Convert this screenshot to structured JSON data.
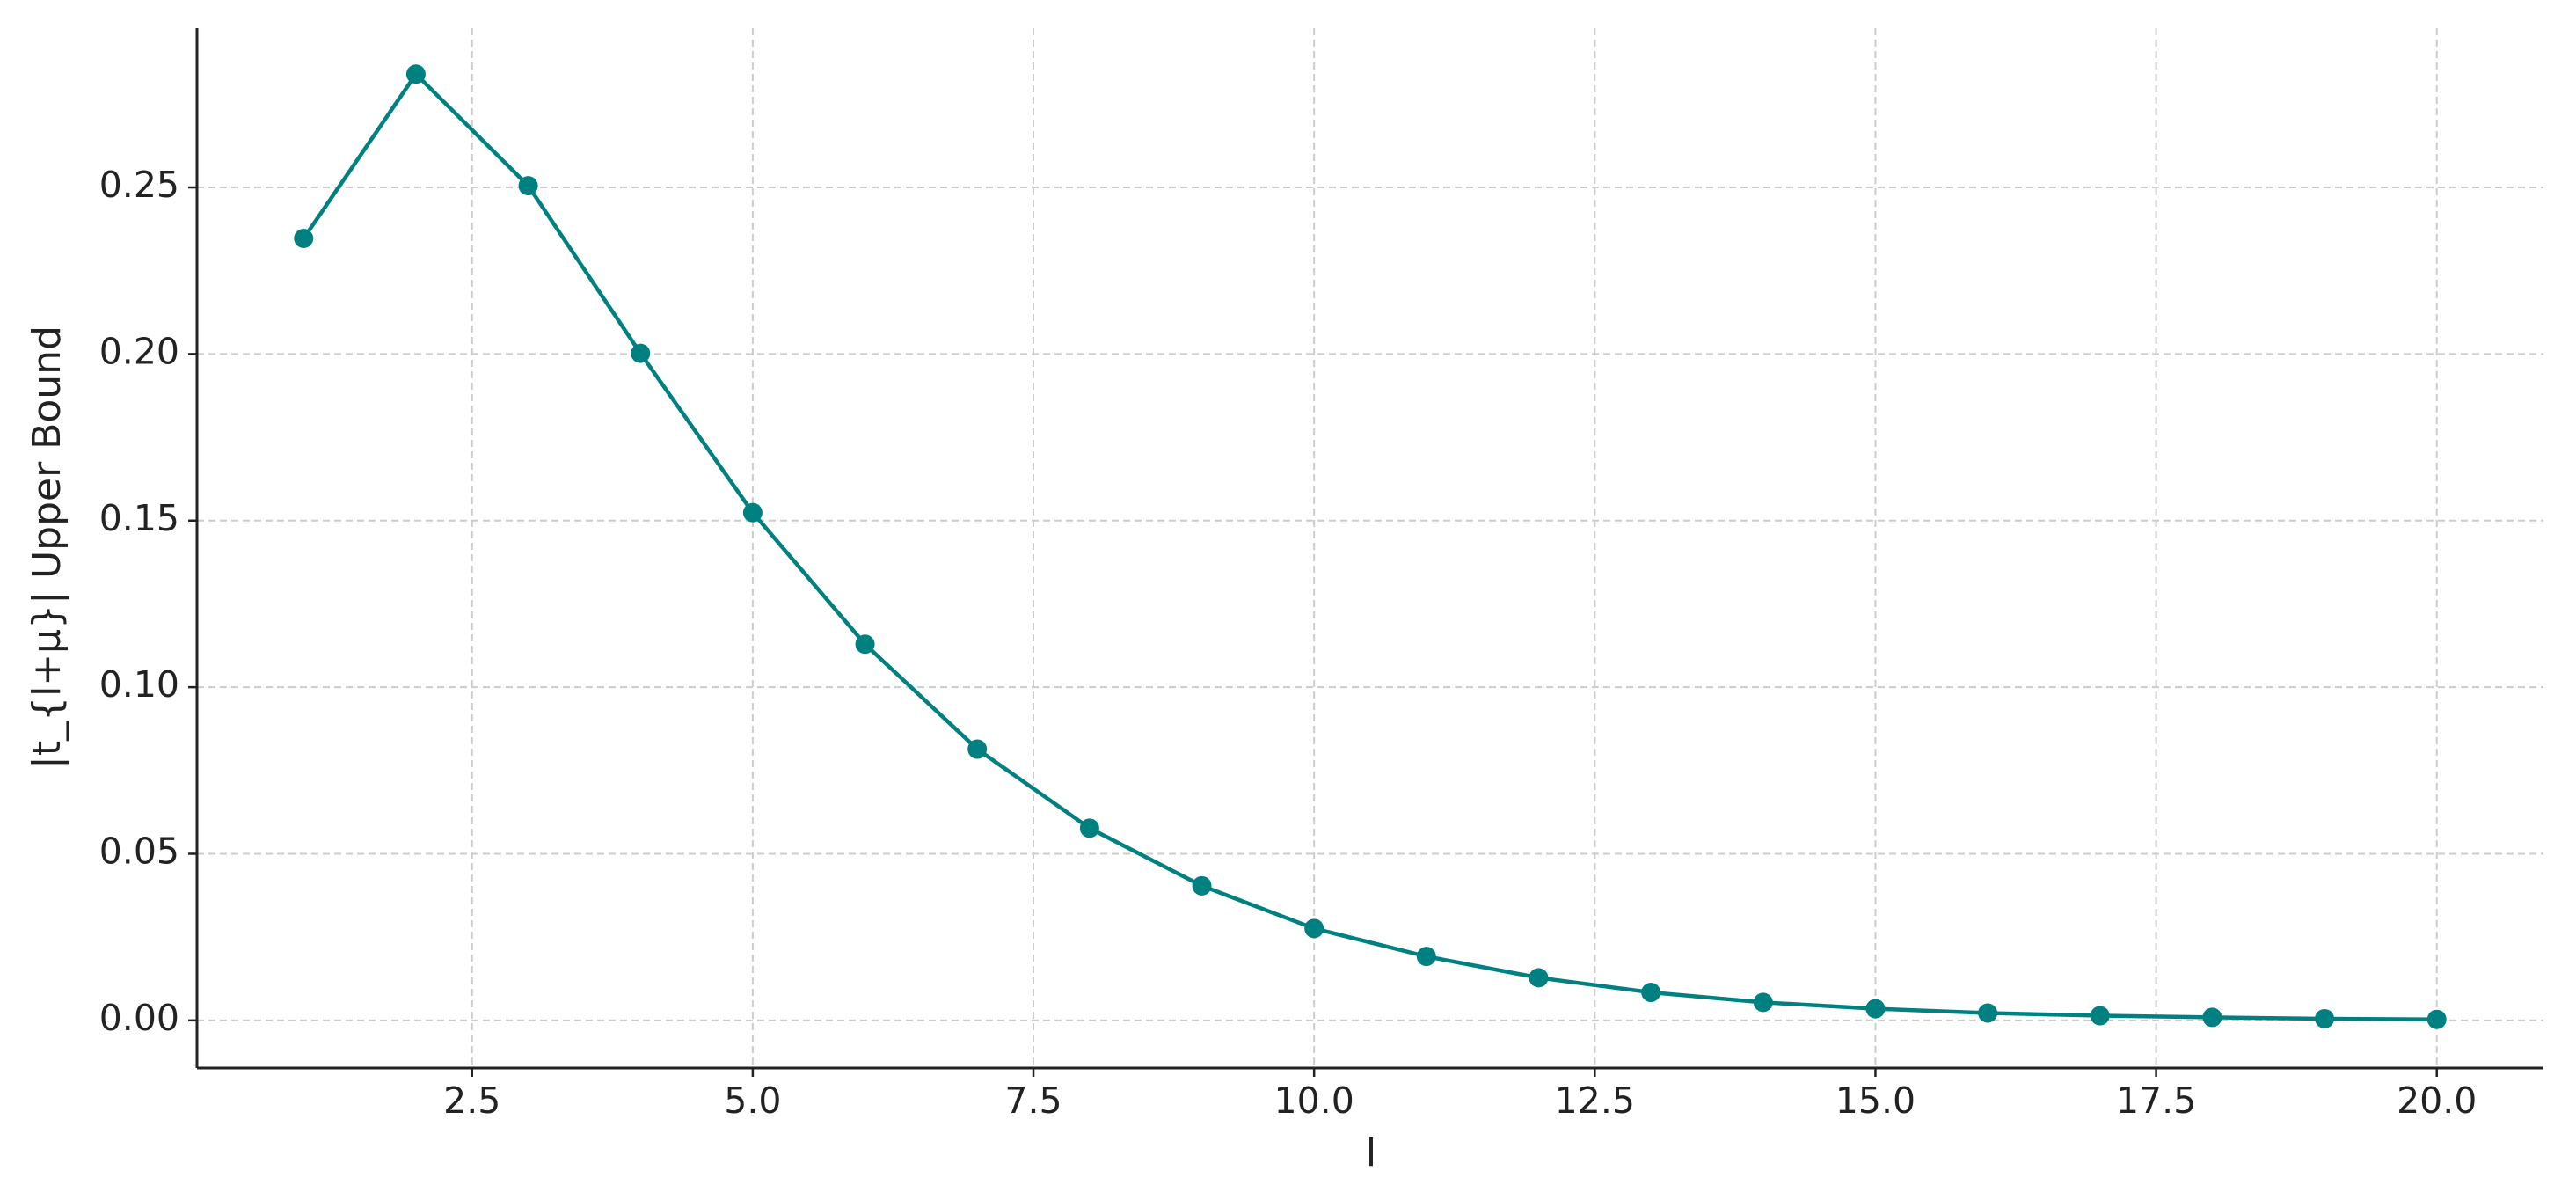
{
  "chart_data": {
    "type": "line",
    "x_label": "l",
    "y_label": "|t_{l+μ}| Upper Bound",
    "x": [
      1,
      2,
      3,
      4,
      5,
      6,
      7,
      8,
      9,
      10,
      11,
      12,
      13,
      14,
      15,
      16,
      17,
      18,
      19,
      20
    ],
    "series": [
      {
        "color": "#008080",
        "values": [
          0.2347,
          0.284,
          0.2505,
          0.2002,
          0.1524,
          0.1129,
          0.0814,
          0.0577,
          0.0404,
          0.0276,
          0.0192,
          0.0128,
          0.0084,
          0.0054,
          0.0035,
          0.0022,
          0.0014,
          0.0009,
          0.0005,
          0.0003
        ]
      }
    ],
    "xlim": [
      0.05,
      20.95
    ],
    "ylim": [
      -0.0143,
      0.2978
    ],
    "xticks": [
      2.5,
      {
        "value": 5,
        "label": "5.0"
      },
      7.5,
      {
        "value": 10,
        "label": "10.0"
      },
      12.5,
      {
        "value": 15,
        "label": "15.0"
      },
      17.5,
      {
        "value": 20,
        "label": "20.0"
      }
    ],
    "yticks": [
      {
        "value": 0,
        "label": "0.00"
      },
      {
        "value": 0.05,
        "label": "0.05"
      },
      {
        "value": 0.1,
        "label": "0.10"
      },
      {
        "value": 0.15,
        "label": "0.15"
      },
      {
        "value": 0.2,
        "label": "0.20"
      },
      {
        "value": 0.25,
        "label": "0.25"
      }
    ],
    "grid": true
  }
}
